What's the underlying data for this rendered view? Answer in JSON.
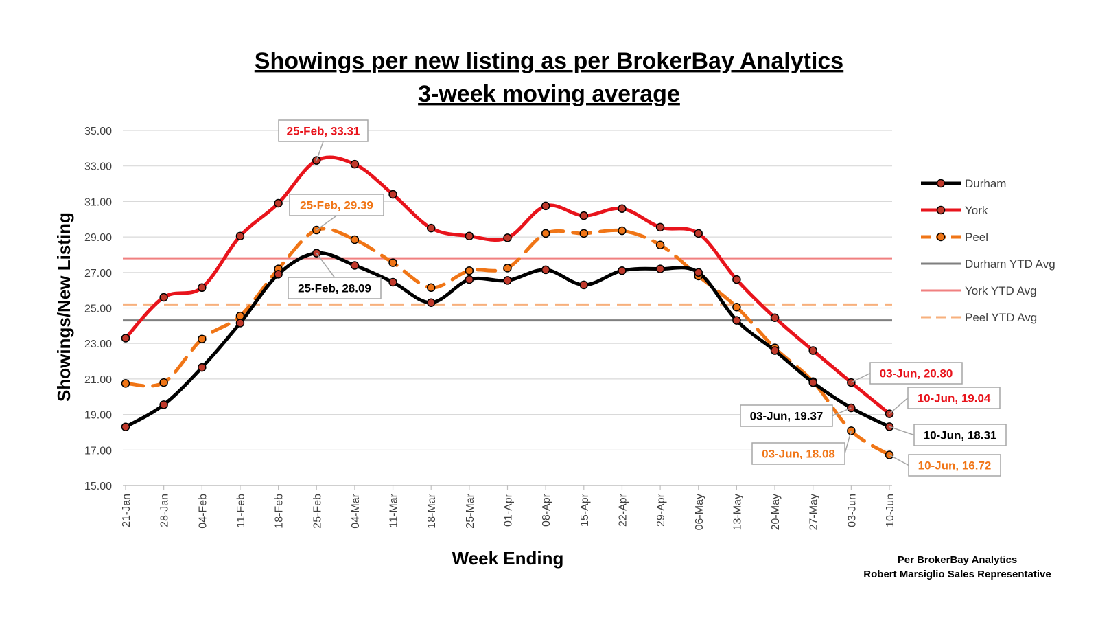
{
  "chart_data": {
    "type": "line",
    "title": "Showings per new listing as per BrokerBay Analytics",
    "subtitle": "3-week moving average",
    "xlabel": "Week Ending",
    "ylabel": "Showings/New Listing",
    "ylim": [
      15,
      35
    ],
    "yticks": [
      "15.00",
      "17.00",
      "19.00",
      "21.00",
      "23.00",
      "25.00",
      "27.00",
      "29.00",
      "31.00",
      "33.00",
      "35.00"
    ],
    "grid": true,
    "legend_position": "right",
    "categories": [
      "21-Jan",
      "28-Jan",
      "04-Feb",
      "11-Feb",
      "18-Feb",
      "25-Feb",
      "04-Mar",
      "11-Mar",
      "18-Mar",
      "25-Mar",
      "01-Apr",
      "08-Apr",
      "15-Apr",
      "22-Apr",
      "29-Apr",
      "06-May",
      "13-May",
      "20-May",
      "27-May",
      "03-Jun",
      "10-Jun"
    ],
    "series": [
      {
        "name": "Durham",
        "color": "#000000",
        "marker_fill": "#c0392b",
        "dashed": false,
        "values": [
          18.3,
          19.55,
          21.65,
          24.15,
          26.9,
          28.09,
          27.4,
          26.45,
          25.3,
          26.6,
          26.55,
          27.15,
          26.3,
          27.1,
          27.2,
          27.0,
          24.3,
          22.6,
          20.8,
          19.37,
          18.31
        ]
      },
      {
        "name": "York",
        "color": "#e8141c",
        "marker_fill": "#c0392b",
        "dashed": false,
        "values": [
          23.3,
          25.6,
          26.15,
          29.05,
          30.9,
          33.31,
          33.1,
          31.4,
          29.5,
          29.05,
          28.95,
          30.75,
          30.2,
          30.6,
          29.55,
          29.2,
          26.6,
          24.45,
          22.6,
          20.8,
          19.04
        ]
      },
      {
        "name": "Peel",
        "color": "#f07516",
        "marker_fill": "#f07516",
        "dashed": true,
        "values": [
          20.75,
          20.8,
          23.25,
          24.55,
          27.2,
          29.39,
          28.85,
          27.55,
          26.15,
          27.1,
          27.25,
          29.2,
          29.2,
          29.35,
          28.55,
          26.8,
          25.05,
          22.75,
          20.85,
          18.08,
          16.72
        ]
      }
    ],
    "reference_lines": [
      {
        "name": "Durham YTD Avg",
        "value": 24.3,
        "color": "#7f7f7f",
        "dashed": false
      },
      {
        "name": "York YTD Avg",
        "value": 27.8,
        "color": "#f08080",
        "dashed": false
      },
      {
        "name": "Peel YTD Avg",
        "value": 25.2,
        "color": "#f7b07d",
        "dashed": true
      }
    ],
    "annotations": [
      {
        "text": "25-Feb, 33.31",
        "series": "York",
        "index": 5,
        "color": "#e8141c"
      },
      {
        "text": "25-Feb, 29.39",
        "series": "Peel",
        "index": 5,
        "color": "#f07516"
      },
      {
        "text": "25-Feb, 28.09",
        "series": "Durham",
        "index": 5,
        "color": "#000000"
      },
      {
        "text": "03-Jun, 20.80",
        "series": "York",
        "index": 19,
        "color": "#e8141c"
      },
      {
        "text": "10-Jun, 19.04",
        "series": "York",
        "index": 20,
        "color": "#e8141c"
      },
      {
        "text": "03-Jun, 19.37",
        "series": "Durham",
        "index": 19,
        "color": "#000000"
      },
      {
        "text": "10-Jun, 18.31",
        "series": "Durham",
        "index": 20,
        "color": "#000000"
      },
      {
        "text": "03-Jun, 18.08",
        "series": "Peel",
        "index": 19,
        "color": "#f07516"
      },
      {
        "text": "10-Jun, 16.72",
        "series": "Peel",
        "index": 20,
        "color": "#f07516"
      }
    ]
  },
  "footer": {
    "line1": "Per BrokerBay Analytics",
    "line2": "Robert Marsiglio Sales Representative"
  }
}
